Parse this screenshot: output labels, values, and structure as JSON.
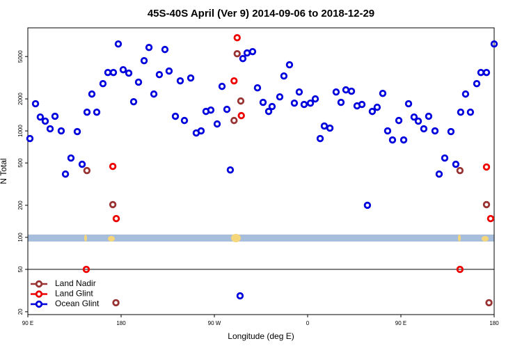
{
  "chart_data": {
    "type": "scatter",
    "title": "45S-40S April (Ver 9)   2014-09-06 to 2018-12-29",
    "xlabel": "Longitude (deg E)",
    "ylabel": "N Total",
    "xlim": [
      90,
      540
    ],
    "xticks": [
      {
        "value": 90,
        "label": "90 E"
      },
      180,
      {
        "value": 270,
        "label": "90 W"
      },
      {
        "value": 360,
        "label": "0"
      },
      {
        "value": 450,
        "label": "90 E"
      },
      {
        "value": 540,
        "label": "180"
      }
    ],
    "ylim": [
      18.8,
      9300
    ],
    "ylog": true,
    "yticks": [
      20,
      50,
      100,
      200,
      500,
      1000,
      2000,
      5000
    ],
    "legend": "lower left",
    "series": [
      {
        "name": "Land Nadir",
        "color": "#993333",
        "x": [
          147,
          172,
          175,
          289,
          292,
          295.5,
          507,
          532.6,
          535
        ],
        "values": [
          424,
          203,
          24.3,
          1253,
          5310,
          1910,
          424,
          203,
          24.3
        ]
      },
      {
        "name": "Land Glint",
        "color": "#ee0000",
        "x": [
          146.4,
          172,
          175.3,
          289,
          292,
          296,
          507,
          532.6,
          536.6
        ],
        "values": [
          50,
          464,
          150,
          2955,
          7510,
          1392,
          50,
          458,
          150
        ]
      },
      {
        "name": "Ocean Glint",
        "color": "#0000dd",
        "x": [
          92,
          97.4,
          102,
          106.8,
          111.5,
          116.2,
          122.2,
          126.3,
          131.6,
          137.7,
          142.4,
          147.1,
          151.8,
          156.5,
          162.5,
          167.2,
          172.6,
          177.3,
          182,
          187.4,
          192.1,
          196.8,
          202.2,
          206.9,
          211.6,
          216.9,
          222.3,
          226.3,
          232.4,
          237.1,
          241.1,
          247.2,
          252.5,
          257.2,
          261.9,
          266.6,
          272.7,
          277.4,
          282.1,
          285.4,
          294.8,
          297.5,
          301.6,
          306.9,
          311.6,
          317,
          322.4,
          325.7,
          333.1,
          337.1,
          342.5,
          347.2,
          351.9,
          356.6,
          362.7,
          367.4,
          372.1,
          376.1,
          381.5,
          387.5,
          392.2,
          396.9,
          402.3,
          407.7,
          412.4,
          417.7,
          422.4,
          427.1,
          432.5,
          437.2,
          441.9,
          448,
          452.7,
          457.4,
          462.7,
          466.8,
          472.1,
          476.8,
          482.9,
          486.9,
          492.3,
          498.3,
          503,
          507.7,
          512.4,
          517.1,
          523.2,
          527.2,
          532.6,
          540
        ],
        "values": [
          848,
          1800,
          1350,
          1235,
          1046,
          1372,
          1000,
          393,
          556,
          985,
          486,
          1500,
          2220,
          1500,
          2780,
          3540,
          3540,
          6560,
          3760,
          3490,
          1880,
          2870,
          4570,
          6080,
          2220,
          3380,
          5820,
          3650,
          1372,
          2955,
          1253,
          3140,
          956,
          1000,
          1524,
          1570,
          1162,
          2620,
          1594,
          430,
          28.2,
          4780,
          5400,
          5560,
          2540,
          1854,
          1524,
          1694,
          2090,
          3280,
          4180,
          1825,
          2320,
          1772,
          1825,
          1998,
          848,
          1111,
          1062,
          2320,
          1854,
          2430,
          2360,
          1719,
          1772,
          200,
          1524,
          1668,
          2253,
          1000,
          822,
          1253,
          822,
          1800,
          1350,
          1235,
          1046,
          1372,
          1000,
          393,
          556,
          985,
          486,
          1500,
          2220,
          1500,
          2780,
          3540,
          3540,
          6560
        ]
      }
    ]
  }
}
